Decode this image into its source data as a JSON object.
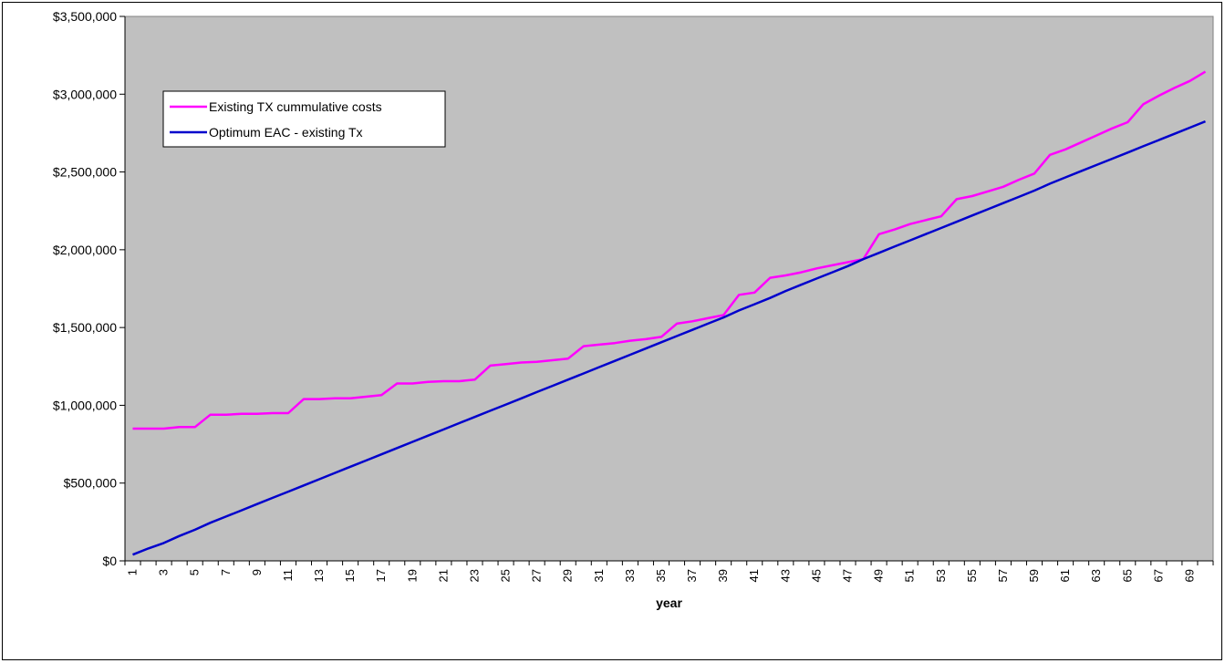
{
  "chart_data": {
    "type": "line",
    "title": "",
    "xlabel": "year",
    "ylabel": "",
    "ylim": [
      0,
      3500000
    ],
    "yticks": [
      0,
      500000,
      1000000,
      1500000,
      2000000,
      2500000,
      3000000,
      3500000
    ],
    "ytick_labels": [
      "$0",
      "$500,000",
      "$1,000,000",
      "$1,500,000",
      "$2,000,000",
      "$2,500,000",
      "$3,000,000",
      "$3,500,000"
    ],
    "x": [
      1,
      2,
      3,
      4,
      5,
      6,
      7,
      8,
      9,
      10,
      11,
      12,
      13,
      14,
      15,
      16,
      17,
      18,
      19,
      20,
      21,
      22,
      23,
      24,
      25,
      26,
      27,
      28,
      29,
      30,
      31,
      32,
      33,
      34,
      35,
      36,
      37,
      38,
      39,
      40,
      41,
      42,
      43,
      44,
      45,
      46,
      47,
      48,
      49,
      50,
      51,
      52,
      53,
      54,
      55,
      56,
      57,
      58,
      59,
      60,
      61,
      62,
      63,
      64,
      65,
      66,
      67,
      68,
      69,
      70
    ],
    "xtick_labels": [
      "1",
      "3",
      "5",
      "7",
      "9",
      "11",
      "13",
      "15",
      "17",
      "19",
      "21",
      "23",
      "25",
      "27",
      "29",
      "31",
      "33",
      "35",
      "37",
      "39",
      "41",
      "43",
      "45",
      "47",
      "49",
      "51",
      "53",
      "55",
      "57",
      "59",
      "61",
      "63",
      "65",
      "67",
      "69"
    ],
    "grid": false,
    "legend_position": "top-left",
    "colors": {
      "plot_background": "#c0c0c0",
      "existing": "#ff00ff",
      "optimum": "#0000cc"
    },
    "series": [
      {
        "name": "Existing TX cummulative costs",
        "color": "#ff00ff",
        "values": [
          850000,
          850000,
          850000,
          860000,
          860000,
          940000,
          940000,
          945000,
          945000,
          950000,
          950000,
          1040000,
          1040000,
          1045000,
          1045000,
          1055000,
          1065000,
          1140000,
          1140000,
          1150000,
          1155000,
          1155000,
          1165000,
          1255000,
          1265000,
          1275000,
          1280000,
          1290000,
          1300000,
          1380000,
          1390000,
          1400000,
          1415000,
          1425000,
          1440000,
          1525000,
          1540000,
          1560000,
          1580000,
          1710000,
          1725000,
          1820000,
          1835000,
          1855000,
          1880000,
          1900000,
          1920000,
          1940000,
          2100000,
          2130000,
          2165000,
          2190000,
          2215000,
          2325000,
          2345000,
          2375000,
          2405000,
          2450000,
          2490000,
          2610000,
          2645000,
          2690000,
          2735000,
          2780000,
          2820000,
          2935000,
          2990000,
          3040000,
          3085000,
          3145000
        ]
      },
      {
        "name": "Optimum EAC - existing Tx",
        "color": "#0000cc",
        "values": [
          40000,
          80000,
          115000,
          160000,
          200000,
          245000,
          285000,
          325000,
          365000,
          405000,
          445000,
          485000,
          525000,
          565000,
          605000,
          645000,
          685000,
          725000,
          765000,
          805000,
          845000,
          885000,
          925000,
          965000,
          1005000,
          1045000,
          1085000,
          1125000,
          1165000,
          1205000,
          1245000,
          1285000,
          1325000,
          1365000,
          1405000,
          1445000,
          1485000,
          1525000,
          1565000,
          1610000,
          1650000,
          1690000,
          1735000,
          1775000,
          1815000,
          1855000,
          1895000,
          1940000,
          1980000,
          2020000,
          2060000,
          2100000,
          2140000,
          2180000,
          2220000,
          2260000,
          2300000,
          2340000,
          2380000,
          2425000,
          2465000,
          2505000,
          2545000,
          2585000,
          2625000,
          2665000,
          2705000,
          2745000,
          2785000,
          2825000
        ]
      }
    ]
  }
}
